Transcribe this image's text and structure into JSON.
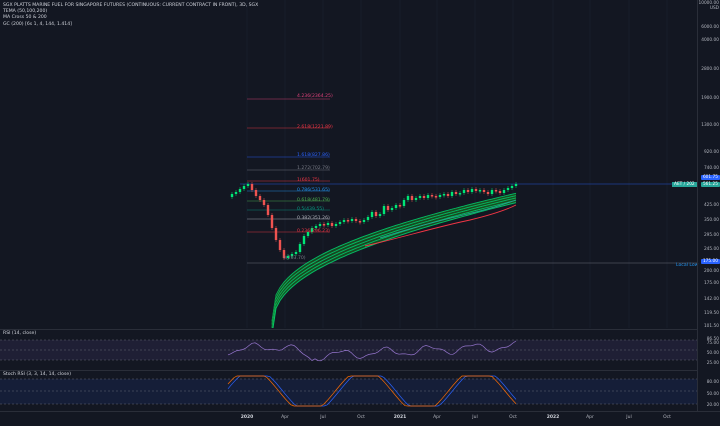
{
  "legend": {
    "symbol": "SGX PLATTS MARINE FUEL FOR SINGAPORE FUTURES (CONTINUOUS: CURRENT CONTRACT IN FRONT), 3D, SGX",
    "indicators": [
      "TEMA (50,100,200)",
      "MA Cross 50 & 200",
      "GC (200) [6s 1, 4, 144, 1.414]"
    ]
  },
  "price_axis": {
    "currency": "USD",
    "ticks": [
      "10000.00",
      "6000.00",
      "4000.00",
      "2800.00",
      "1900.00",
      "1300.00",
      "920.00",
      "740.00",
      "425.00",
      "350.00",
      "295.00",
      "245.00",
      "200.00",
      "175.00",
      "142.00",
      "119.50",
      "101.50",
      "86.50"
    ]
  },
  "fib_levels": [
    {
      "label": "4.236(2364.25)",
      "color": "#e0407a"
    },
    {
      "label": "2.618(1221.89)",
      "color": "#f23645"
    },
    {
      "label": "1.618(827.86)",
      "color": "#2962ff"
    },
    {
      "label": "1.272(702.79)",
      "color": "#787b86"
    },
    {
      "label": "1(601.75)",
      "color": "#f23645"
    },
    {
      "label": "0.786(531.65)",
      "color": "#2196f3"
    },
    {
      "label": "0.618(481.79)",
      "color": "#4caf50"
    },
    {
      "label": "0.5(439.55)",
      "color": "#089981"
    },
    {
      "label": "0.382(351.26)",
      "color": "#b2b5be"
    },
    {
      "label": "0.236(296.23)",
      "color": "#f23645"
    },
    {
      "label": "0(203.70)",
      "color": "#787b86"
    }
  ],
  "price_badges": [
    {
      "label": "HFY",
      "value": "601.75",
      "color": "#2962ff"
    },
    {
      "label": "AET / 202",
      "value": "561.25",
      "color": "#26a69a"
    },
    {
      "label": "",
      "value": "175.00",
      "color": "#2962ff"
    }
  ],
  "local_low_label": "Local Low",
  "rsi": {
    "legend": "RSI (14, close)",
    "ticks": [
      "75.00",
      "50.00",
      "25.00"
    ]
  },
  "stoch": {
    "legend": "Stoch RSI (3, 3, 14, 14, close)",
    "ticks": [
      "80.00",
      "50.00",
      "20.00"
    ]
  },
  "time_axis": [
    {
      "label": "2020",
      "major": true
    },
    {
      "label": "Apr",
      "major": false
    },
    {
      "label": "Jul",
      "major": false
    },
    {
      "label": "Oct",
      "major": false
    },
    {
      "label": "2021",
      "major": true
    },
    {
      "label": "Apr",
      "major": false
    },
    {
      "label": "Jul",
      "major": false
    },
    {
      "label": "Oct",
      "major": false
    },
    {
      "label": "2022",
      "major": true
    },
    {
      "label": "Apr",
      "major": false
    },
    {
      "label": "Jul",
      "major": false
    },
    {
      "label": "Oct",
      "major": false
    }
  ]
}
